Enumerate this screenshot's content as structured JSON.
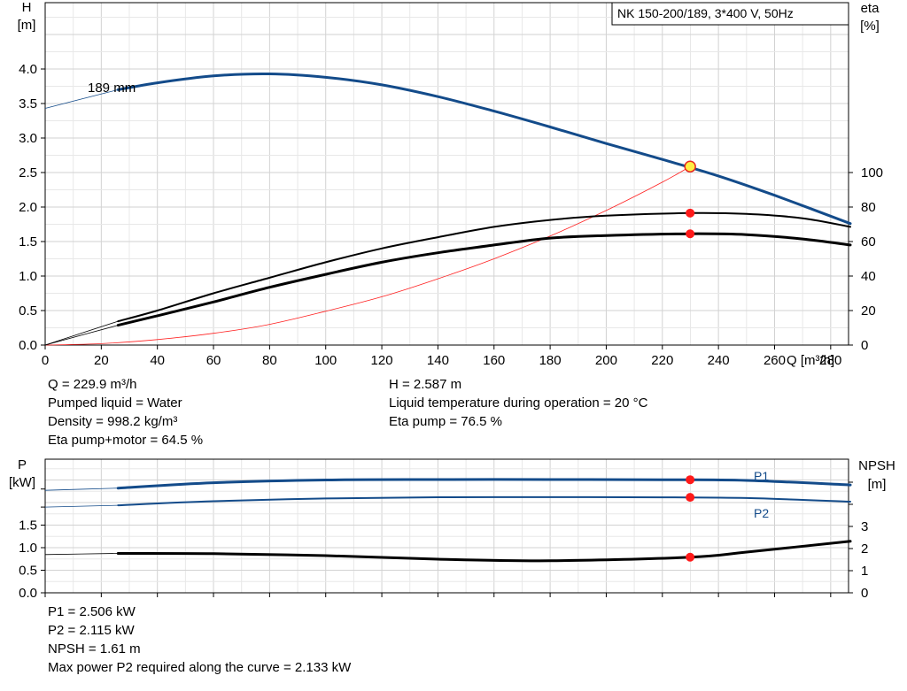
{
  "chart_data": [
    {
      "type": "line",
      "title": "NK 150-200/189, 3*400 V, 50Hz",
      "xlabel": "Q [m³/h]",
      "ylabel": [
        "H",
        "[m]"
      ],
      "y2label": [
        "eta",
        "[%]"
      ],
      "xlim": [
        0,
        290
      ],
      "ylim": [
        0,
        4.0
      ],
      "y2lim": [
        0,
        100
      ],
      "x_ticks": [
        0,
        20,
        40,
        60,
        80,
        100,
        120,
        140,
        160,
        180,
        200,
        220,
        240,
        260,
        280
      ],
      "y_ticks": [
        "0.0",
        "0.5",
        "1.0",
        "1.5",
        "2.0",
        "2.5",
        "3.0",
        "3.5",
        "4.0"
      ],
      "y2_ticks": [
        "0",
        "20",
        "40",
        "60",
        "80",
        "100"
      ],
      "grid": true,
      "annotation": "189 mm",
      "series": [
        {
          "role": "head",
          "color": "#134b8a",
          "x": [
            0,
            26,
            40,
            60,
            80,
            100,
            120,
            140,
            160,
            180,
            200,
            220,
            240,
            260,
            287
          ],
          "y": [
            3.43,
            3.7,
            3.8,
            3.9,
            3.93,
            3.88,
            3.77,
            3.6,
            3.39,
            3.16,
            2.92,
            2.69,
            2.45,
            2.17,
            1.76
          ]
        },
        {
          "role": "eta-pump",
          "color": "#000000",
          "x": [
            0,
            26,
            40,
            60,
            80,
            100,
            120,
            140,
            160,
            180,
            200,
            230,
            250,
            270,
            287
          ],
          "y": [
            0,
            13.8,
            20,
            30,
            39,
            48,
            56,
            62.5,
            68.5,
            72.5,
            75,
            76.5,
            76,
            73.5,
            68.5
          ]
        },
        {
          "role": "eta-pump-motor",
          "color": "#000000",
          "x": [
            0,
            26,
            40,
            60,
            80,
            100,
            120,
            140,
            160,
            180,
            200,
            230,
            250,
            270,
            287
          ],
          "y": [
            0,
            11.5,
            17,
            25,
            33.5,
            41,
            48,
            53.5,
            58,
            62,
            63.5,
            64.5,
            64,
            61.5,
            58
          ]
        },
        {
          "role": "system",
          "color": "#ff2020",
          "x": [
            0,
            20,
            40,
            60,
            80,
            100,
            120,
            140,
            160,
            180,
            200,
            220,
            229.9
          ],
          "y": [
            0,
            0.02,
            0.08,
            0.17,
            0.3,
            0.49,
            0.7,
            0.96,
            1.25,
            1.58,
            1.95,
            2.36,
            2.587
          ]
        }
      ],
      "operating_point": {
        "x": 229.9,
        "h": 2.587,
        "eta_pump": 76.5,
        "eta_total": 64.5
      }
    },
    {
      "type": "line",
      "ylabel": [
        "P",
        "[kW]"
      ],
      "y2label": [
        "NPSH",
        "[m]"
      ],
      "xlim": [
        0,
        290
      ],
      "y_ticks": [
        "0.0",
        "0.5",
        "1.0",
        "1.5"
      ],
      "y2_ticks": [
        "0",
        "1",
        "2",
        "3"
      ],
      "grid": true,
      "series": [
        {
          "name": "P1",
          "color": "#134b8a",
          "x": [
            0,
            26,
            60,
            100,
            140,
            180,
            220,
            250,
            287
          ],
          "y": [
            2.27,
            2.32,
            2.44,
            2.5,
            2.51,
            2.51,
            2.505,
            2.49,
            2.39
          ]
        },
        {
          "name": "P2",
          "color": "#134b8a",
          "x": [
            0,
            26,
            60,
            100,
            140,
            180,
            220,
            250,
            287
          ],
          "y": [
            1.9,
            1.94,
            2.03,
            2.09,
            2.117,
            2.12,
            2.116,
            2.1,
            2.02
          ]
        },
        {
          "role": "npsh",
          "color": "#000000",
          "x": [
            0,
            26,
            60,
            100,
            140,
            180,
            229.9,
            250,
            287
          ],
          "y": [
            1.73,
            1.78,
            1.77,
            1.68,
            1.52,
            1.45,
            1.61,
            1.84,
            2.33
          ]
        }
      ],
      "operating_point": {
        "x": 229.9,
        "p1": 2.506,
        "p2": 2.115,
        "npsh": 1.61
      }
    }
  ],
  "info_top_left": [
    "Q = 229.9 m³/h",
    "Pumped liquid = Water",
    "Density = 998.2 kg/m³",
    "Eta pump+motor = 64.5 %"
  ],
  "info_top_right": [
    "H = 2.587 m",
    "Liquid temperature during operation = 20 °C",
    "Eta pump = 76.5 %"
  ],
  "info_bottom": [
    "P1 = 2.506 kW",
    "P2 = 2.115 kW",
    "NPSH = 1.61 m",
    "Max power P2 required along the curve = 2.133 kW"
  ]
}
